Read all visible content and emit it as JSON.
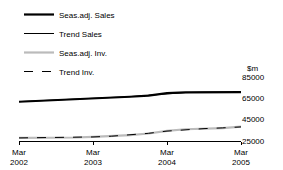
{
  "chart_data": {
    "type": "line",
    "ylabel": "$m",
    "categories": [
      "Mar\n2002",
      null,
      null,
      null,
      "Mar\n2003",
      null,
      null,
      null,
      "Mar\n2004",
      null,
      null,
      null,
      "Mar\n2005"
    ],
    "series": [
      {
        "name": "Seas.adj. Sales",
        "color": "#000000",
        "line_style": "thick",
        "values": [
          61800,
          62500,
          63500,
          63800,
          64800,
          65300,
          66500,
          67500,
          69800,
          70600,
          70700,
          70600,
          70800
        ]
      },
      {
        "name": "Trend Sales",
        "color": "#000000",
        "line_style": "solid",
        "values": [
          61900,
          62600,
          63300,
          64000,
          64700,
          65500,
          66600,
          67900,
          69400,
          70400,
          70700,
          70800,
          70800
        ]
      },
      {
        "name": "Seas.adj. Inv.",
        "color": "#bbbbbb",
        "line_style": "thick",
        "values": [
          28000,
          28000,
          28100,
          28300,
          28800,
          29300,
          30500,
          32000,
          34500,
          36000,
          36400,
          37000,
          38500
        ]
      },
      {
        "name": "Trend Inv.",
        "color": "#000000",
        "line_style": "dashed",
        "values": [
          27900,
          28000,
          28100,
          28400,
          28800,
          29500,
          30600,
          32200,
          34300,
          35800,
          36600,
          37300,
          38200
        ]
      }
    ],
    "ylim": [
      25000,
      85000
    ],
    "yticks": [
      25000,
      45000,
      65000,
      85000
    ],
    "grid": false,
    "legend": "top-left"
  }
}
